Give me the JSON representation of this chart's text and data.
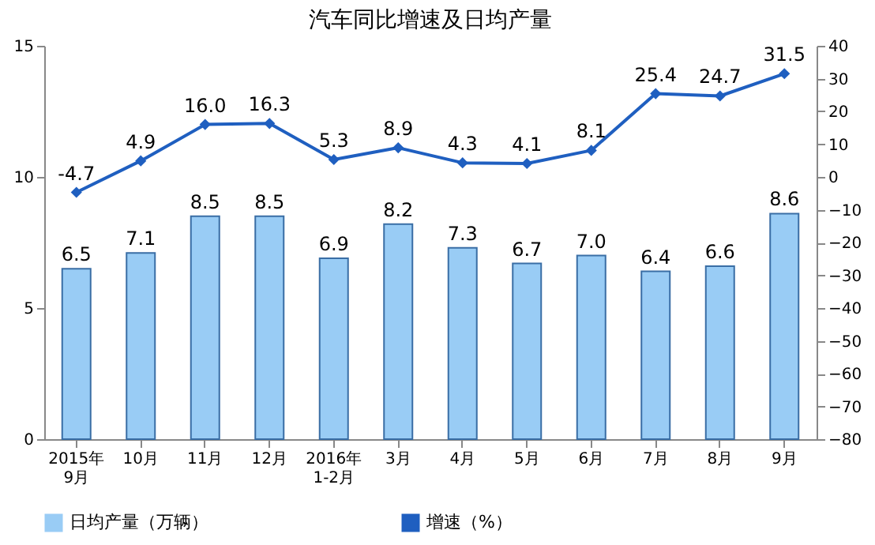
{
  "chart_data": {
    "type": "bar",
    "title": "汽车同比增速及日均产量",
    "categories": [
      "2015年\n9月",
      "10月",
      "11月",
      "12月",
      "2016年\n1-2月",
      "3月",
      "4月",
      "5月",
      "6月",
      "7月",
      "8月",
      "9月"
    ],
    "series": [
      {
        "name": "日均产量（万辆）",
        "color": "#99ccf5",
        "values": [
          6.5,
          7.1,
          8.5,
          8.5,
          6.9,
          8.2,
          7.3,
          6.7,
          7.0,
          6.4,
          6.6,
          8.6
        ],
        "value_labels": [
          "6.5",
          "7.1",
          "8.5",
          "8.5",
          "6.9",
          "8.2",
          "7.3",
          "6.7",
          "7.0",
          "6.4",
          "6.6",
          "8.6"
        ]
      },
      {
        "name": "增速（%）",
        "type": "line",
        "axis": "y2",
        "color": "#1f5fc0",
        "values": [
          -4.7,
          4.9,
          16.0,
          16.3,
          5.3,
          8.9,
          4.3,
          4.1,
          8.1,
          25.4,
          24.7,
          31.5
        ],
        "value_labels": [
          "-4.7",
          "4.9",
          "16.0",
          "16.3",
          "5.3",
          "8.9",
          "4.3",
          "4.1",
          "8.1",
          "25.4",
          "24.7",
          "31.5"
        ]
      }
    ],
    "ylim": [
      0,
      15
    ],
    "yticks": [
      0,
      5,
      10,
      15
    ],
    "y2lim": [
      -80,
      40
    ],
    "y2ticks": [
      -80,
      -70,
      -60,
      -50,
      -40,
      -30,
      -20,
      -10,
      0,
      10,
      20,
      30,
      40
    ],
    "marker": "diamond",
    "legend": "bottom"
  }
}
